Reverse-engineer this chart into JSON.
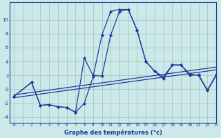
{
  "xlabel": "Graphe des températures (°c)",
  "background_color": "#cce8e8",
  "grid_color": "#aacccc",
  "line_color": "#1a3a9a",
  "xlim": [
    -0.5,
    23
  ],
  "ylim": [
    -4.8,
    12.5
  ],
  "xticks": [
    0,
    1,
    2,
    3,
    4,
    5,
    6,
    7,
    8,
    9,
    10,
    11,
    12,
    13,
    14,
    15,
    16,
    17,
    18,
    19,
    20,
    21,
    22,
    23
  ],
  "yticks": [
    -4,
    -2,
    0,
    2,
    4,
    6,
    8,
    10
  ],
  "series": [
    {
      "x": [
        0,
        23
      ],
      "y": [
        -1.2,
        2.8
      ]
    },
    {
      "x": [
        0,
        23
      ],
      "y": [
        -0.8,
        3.2
      ]
    },
    {
      "x": [
        0,
        2,
        3,
        4,
        5,
        6,
        7,
        8,
        9,
        10,
        11,
        12,
        13,
        14,
        15,
        16,
        17,
        18,
        19,
        20,
        21,
        22,
        23
      ],
      "y": [
        -1.0,
        1.0,
        -2.3,
        -2.2,
        -2.5,
        -2.6,
        -3.3,
        -2.0,
        1.8,
        7.8,
        11.2,
        11.5,
        11.5,
        8.5,
        4.0,
        2.6,
        1.5,
        3.5,
        3.5,
        2.2,
        2.0,
        -0.2,
        2.0
      ]
    },
    {
      "x": [
        0,
        2,
        3,
        4,
        5,
        6,
        7,
        8,
        9,
        10,
        11,
        12,
        13,
        14,
        15,
        16,
        17,
        18,
        19,
        20,
        21,
        22,
        23
      ],
      "y": [
        -1.0,
        1.0,
        -2.3,
        -2.2,
        -2.5,
        -2.6,
        -3.3,
        4.5,
        2.0,
        1.9,
        7.8,
        11.2,
        11.5,
        8.5,
        4.0,
        2.6,
        1.8,
        3.5,
        3.5,
        2.0,
        2.1,
        -0.1,
        2.1
      ]
    }
  ]
}
